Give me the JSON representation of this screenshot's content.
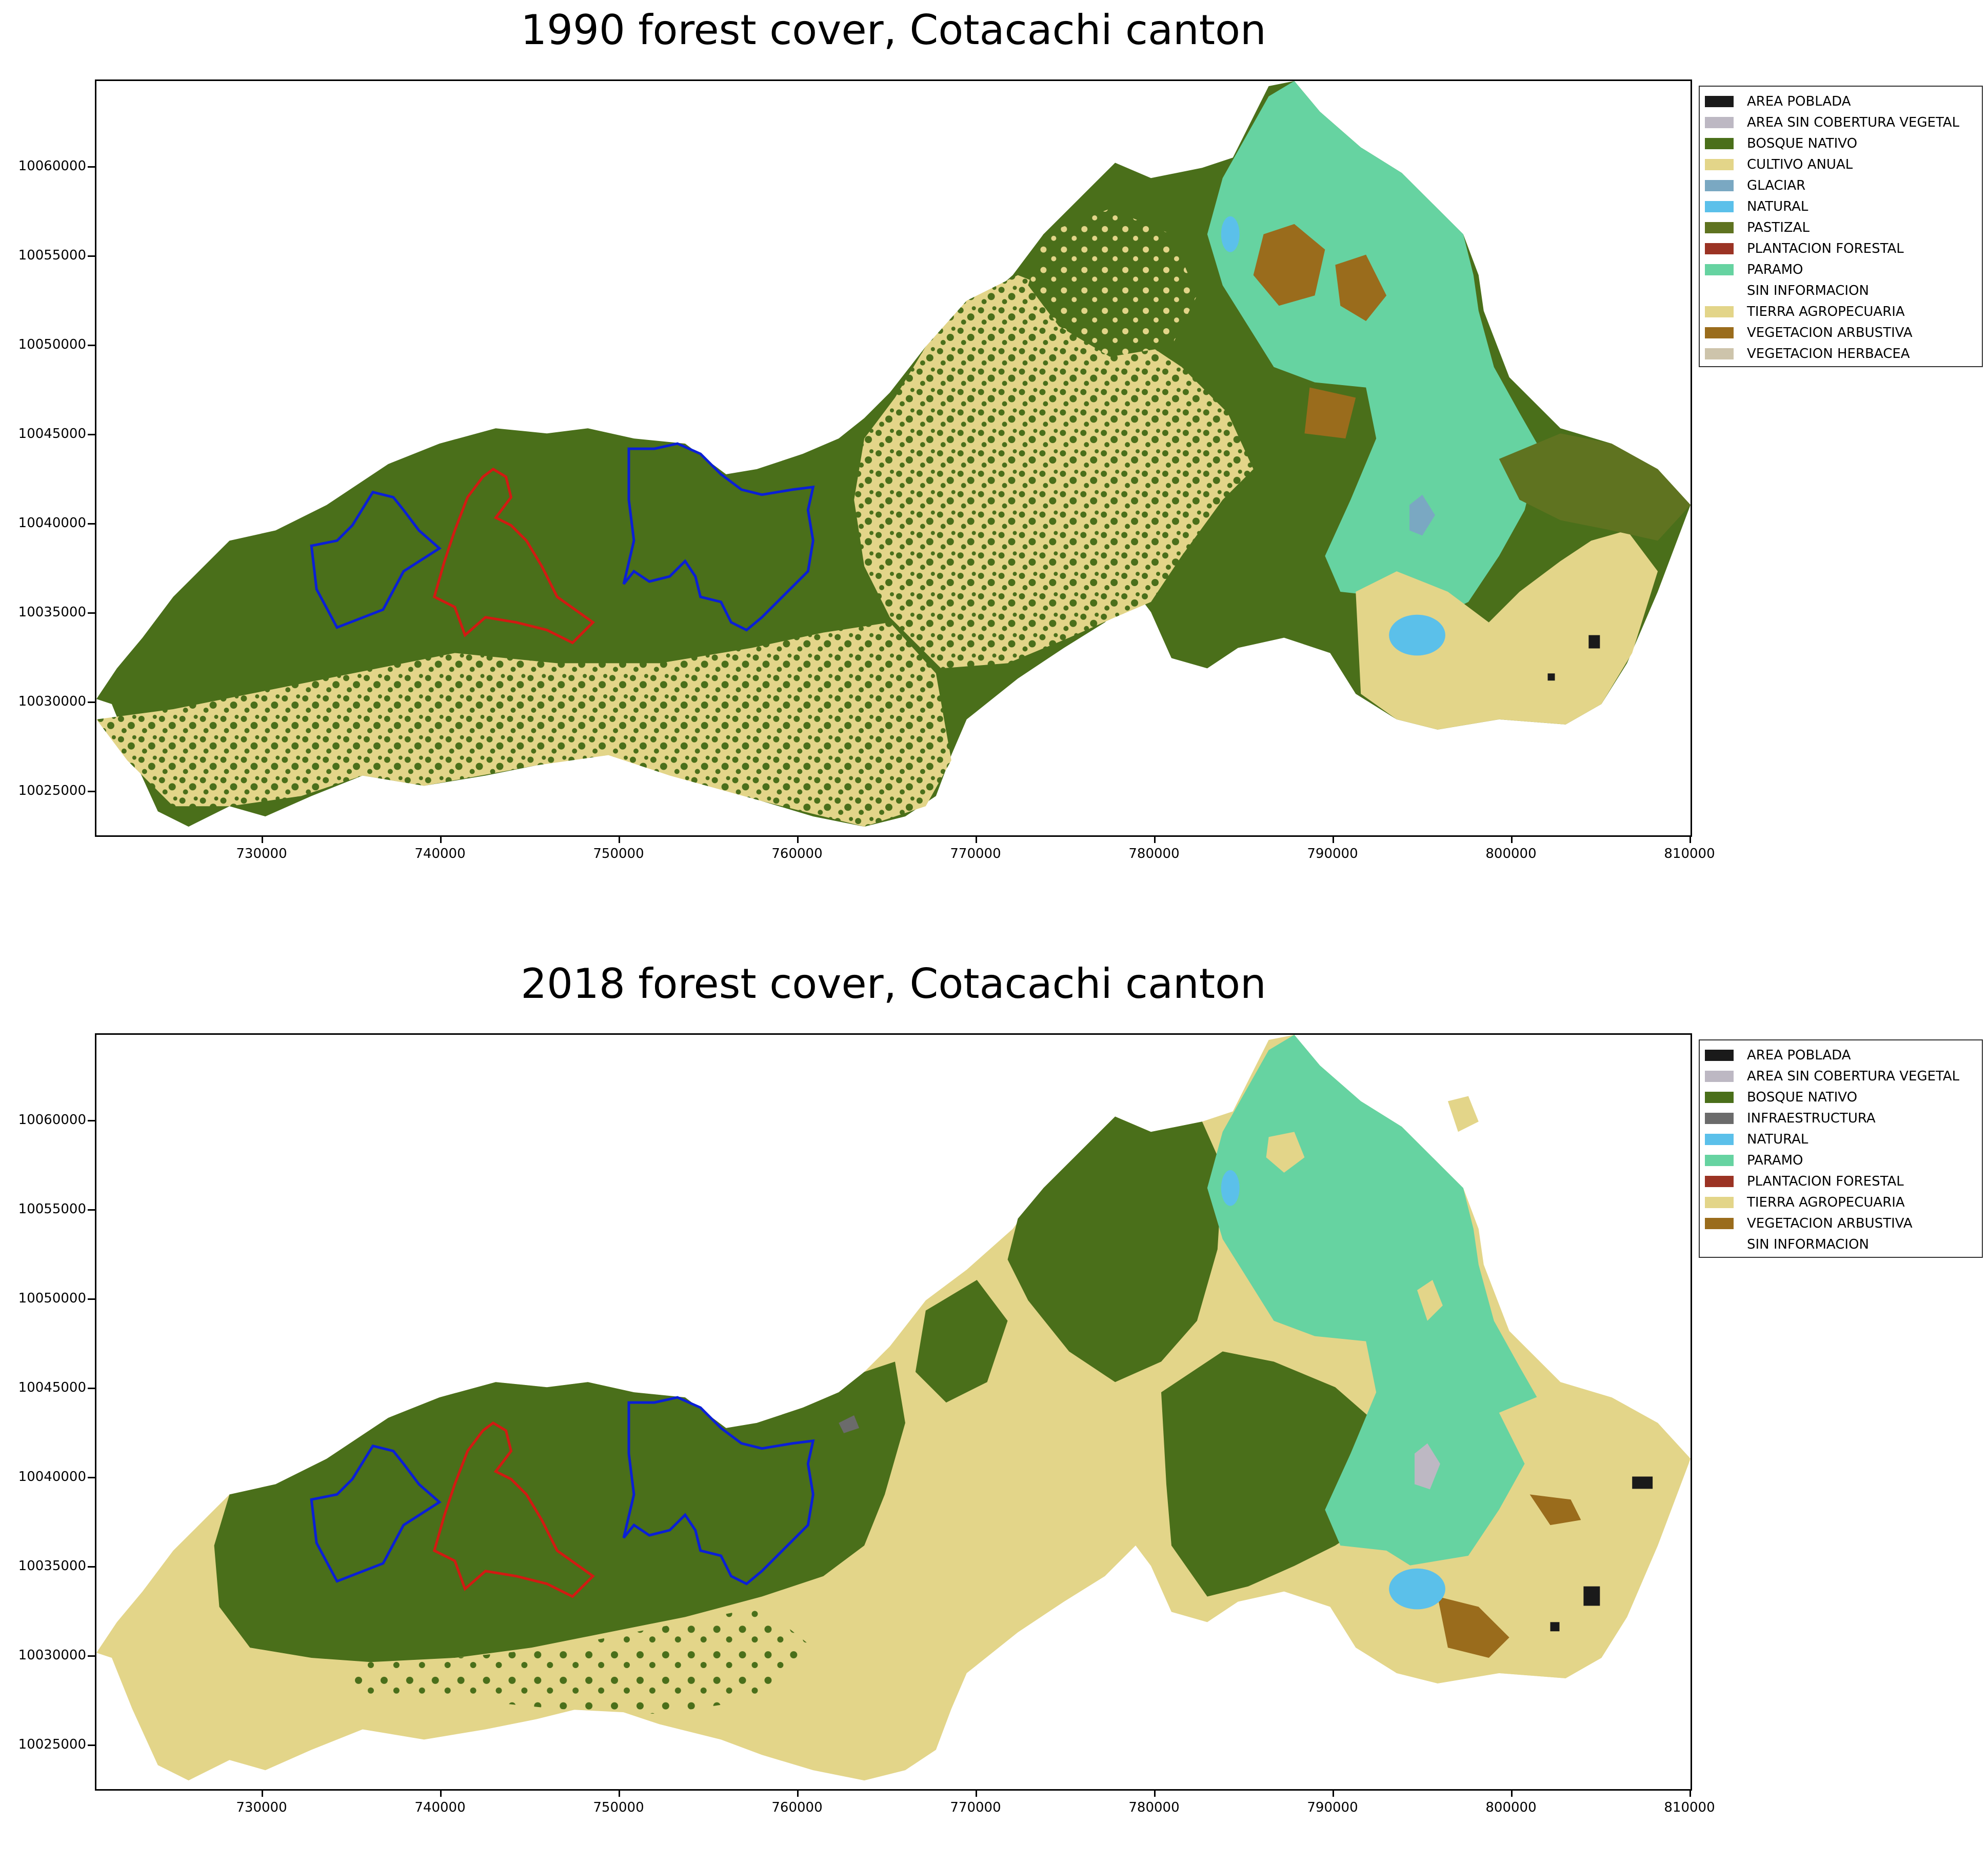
{
  "panels": [
    {
      "title": "1990 forest cover, Cotacachi canton",
      "y_ticks": [
        "10060000",
        "10055000",
        "10050000",
        "10045000",
        "10040000",
        "10035000",
        "10030000",
        "10025000"
      ],
      "x_ticks": [
        "730000",
        "740000",
        "750000",
        "760000",
        "770000",
        "780000",
        "790000",
        "800000",
        "810000"
      ],
      "legend": [
        {
          "label": "AREA POBLADA",
          "color": "#1a1a1a"
        },
        {
          "label": "AREA SIN COBERTURA VEGETAL",
          "color": "#bdb8c3"
        },
        {
          "label": "BOSQUE NATIVO",
          "color": "#4a6f1a"
        },
        {
          "label": "CULTIVO ANUAL",
          "color": "#e3d589"
        },
        {
          "label": "GLACIAR",
          "color": "#7aa8c2"
        },
        {
          "label": "NATURAL",
          "color": "#5bc0ea"
        },
        {
          "label": "PASTIZAL",
          "color": "#5f7320"
        },
        {
          "label": "PLANTACION FORESTAL",
          "color": "#9b3324"
        },
        {
          "label": "PARAMO",
          "color": "#66d3a1"
        },
        {
          "label": "SIN INFORMACION",
          "color": "#ffffff"
        },
        {
          "label": "TIERRA AGROPECUARIA",
          "color": "#e3d589"
        },
        {
          "label": "VEGETACION ARBUSTIVA",
          "color": "#9a6c1c"
        },
        {
          "label": "VEGETACION HERBACEA",
          "color": "#cdc4ab"
        }
      ]
    },
    {
      "title": "2018 forest cover, Cotacachi canton",
      "y_ticks": [
        "10060000",
        "10055000",
        "10050000",
        "10045000",
        "10040000",
        "10035000",
        "10030000",
        "10025000"
      ],
      "x_ticks": [
        "730000",
        "740000",
        "750000",
        "760000",
        "770000",
        "780000",
        "790000",
        "800000",
        "810000"
      ],
      "legend": [
        {
          "label": "AREA POBLADA",
          "color": "#1a1a1a"
        },
        {
          "label": "AREA SIN COBERTURA VEGETAL",
          "color": "#bdb8c3"
        },
        {
          "label": "BOSQUE NATIVO",
          "color": "#4a6f1a"
        },
        {
          "label": "INFRAESTRUCTURA",
          "color": "#6b6b6b"
        },
        {
          "label": "NATURAL",
          "color": "#5bc0ea"
        },
        {
          "label": "PARAMO",
          "color": "#66d3a1"
        },
        {
          "label": "PLANTACION FORESTAL",
          "color": "#9b3324"
        },
        {
          "label": "TIERRA AGROPECUARIA",
          "color": "#e3d589"
        },
        {
          "label": "VEGETACION ARBUSTIVA",
          "color": "#9a6c1c"
        },
        {
          "label": "SIN INFORMACION",
          "color": "#ffffff"
        }
      ]
    }
  ],
  "colors": {
    "forest": "#4a6f1a",
    "agri": "#e3d589",
    "paramo": "#66d3a1",
    "shrub": "#9a6c1c",
    "lake": "#5bc0ea",
    "boundary_blue": "#0a1fd6",
    "boundary_red": "#d21a12"
  }
}
